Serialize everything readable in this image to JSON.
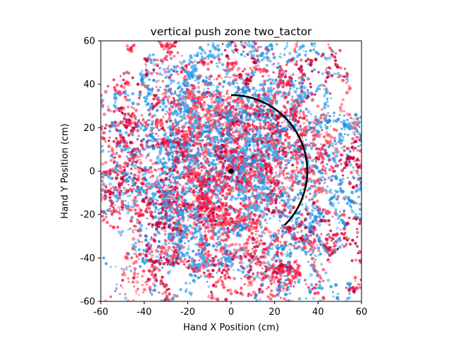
{
  "chart_data": {
    "type": "scatter",
    "title": "vertical push zone two_tactor",
    "xlabel": "Hand X Position (cm)",
    "ylabel": "Hand Y Position (cm)",
    "xlim": [
      -60,
      60
    ],
    "ylim": [
      -60,
      60
    ],
    "xticks": [
      "-60",
      "-40",
      "-20",
      "0",
      "20",
      "40",
      "60"
    ],
    "yticks": [
      "-60",
      "-40",
      "-20",
      "0",
      "20",
      "40",
      "60"
    ],
    "grid": false,
    "legend": "none",
    "point_cloud": {
      "colors": [
        "#1f8ee0",
        "#ff1a45",
        "#ff5060",
        "#c8003a",
        "#3fa8f0"
      ],
      "x_range": [
        -60,
        60
      ],
      "y_range": [
        -60,
        60
      ],
      "concentration": "dense near center (0, 0), sparser toward edges"
    },
    "center_marker": {
      "x": 0,
      "y": 0,
      "color": "#000000"
    },
    "arc": {
      "center": [
        0,
        0
      ],
      "radius": 35,
      "start_point": [
        0,
        35
      ],
      "end_point": [
        24.6,
        -24.9
      ],
      "color": "#000000"
    }
  }
}
